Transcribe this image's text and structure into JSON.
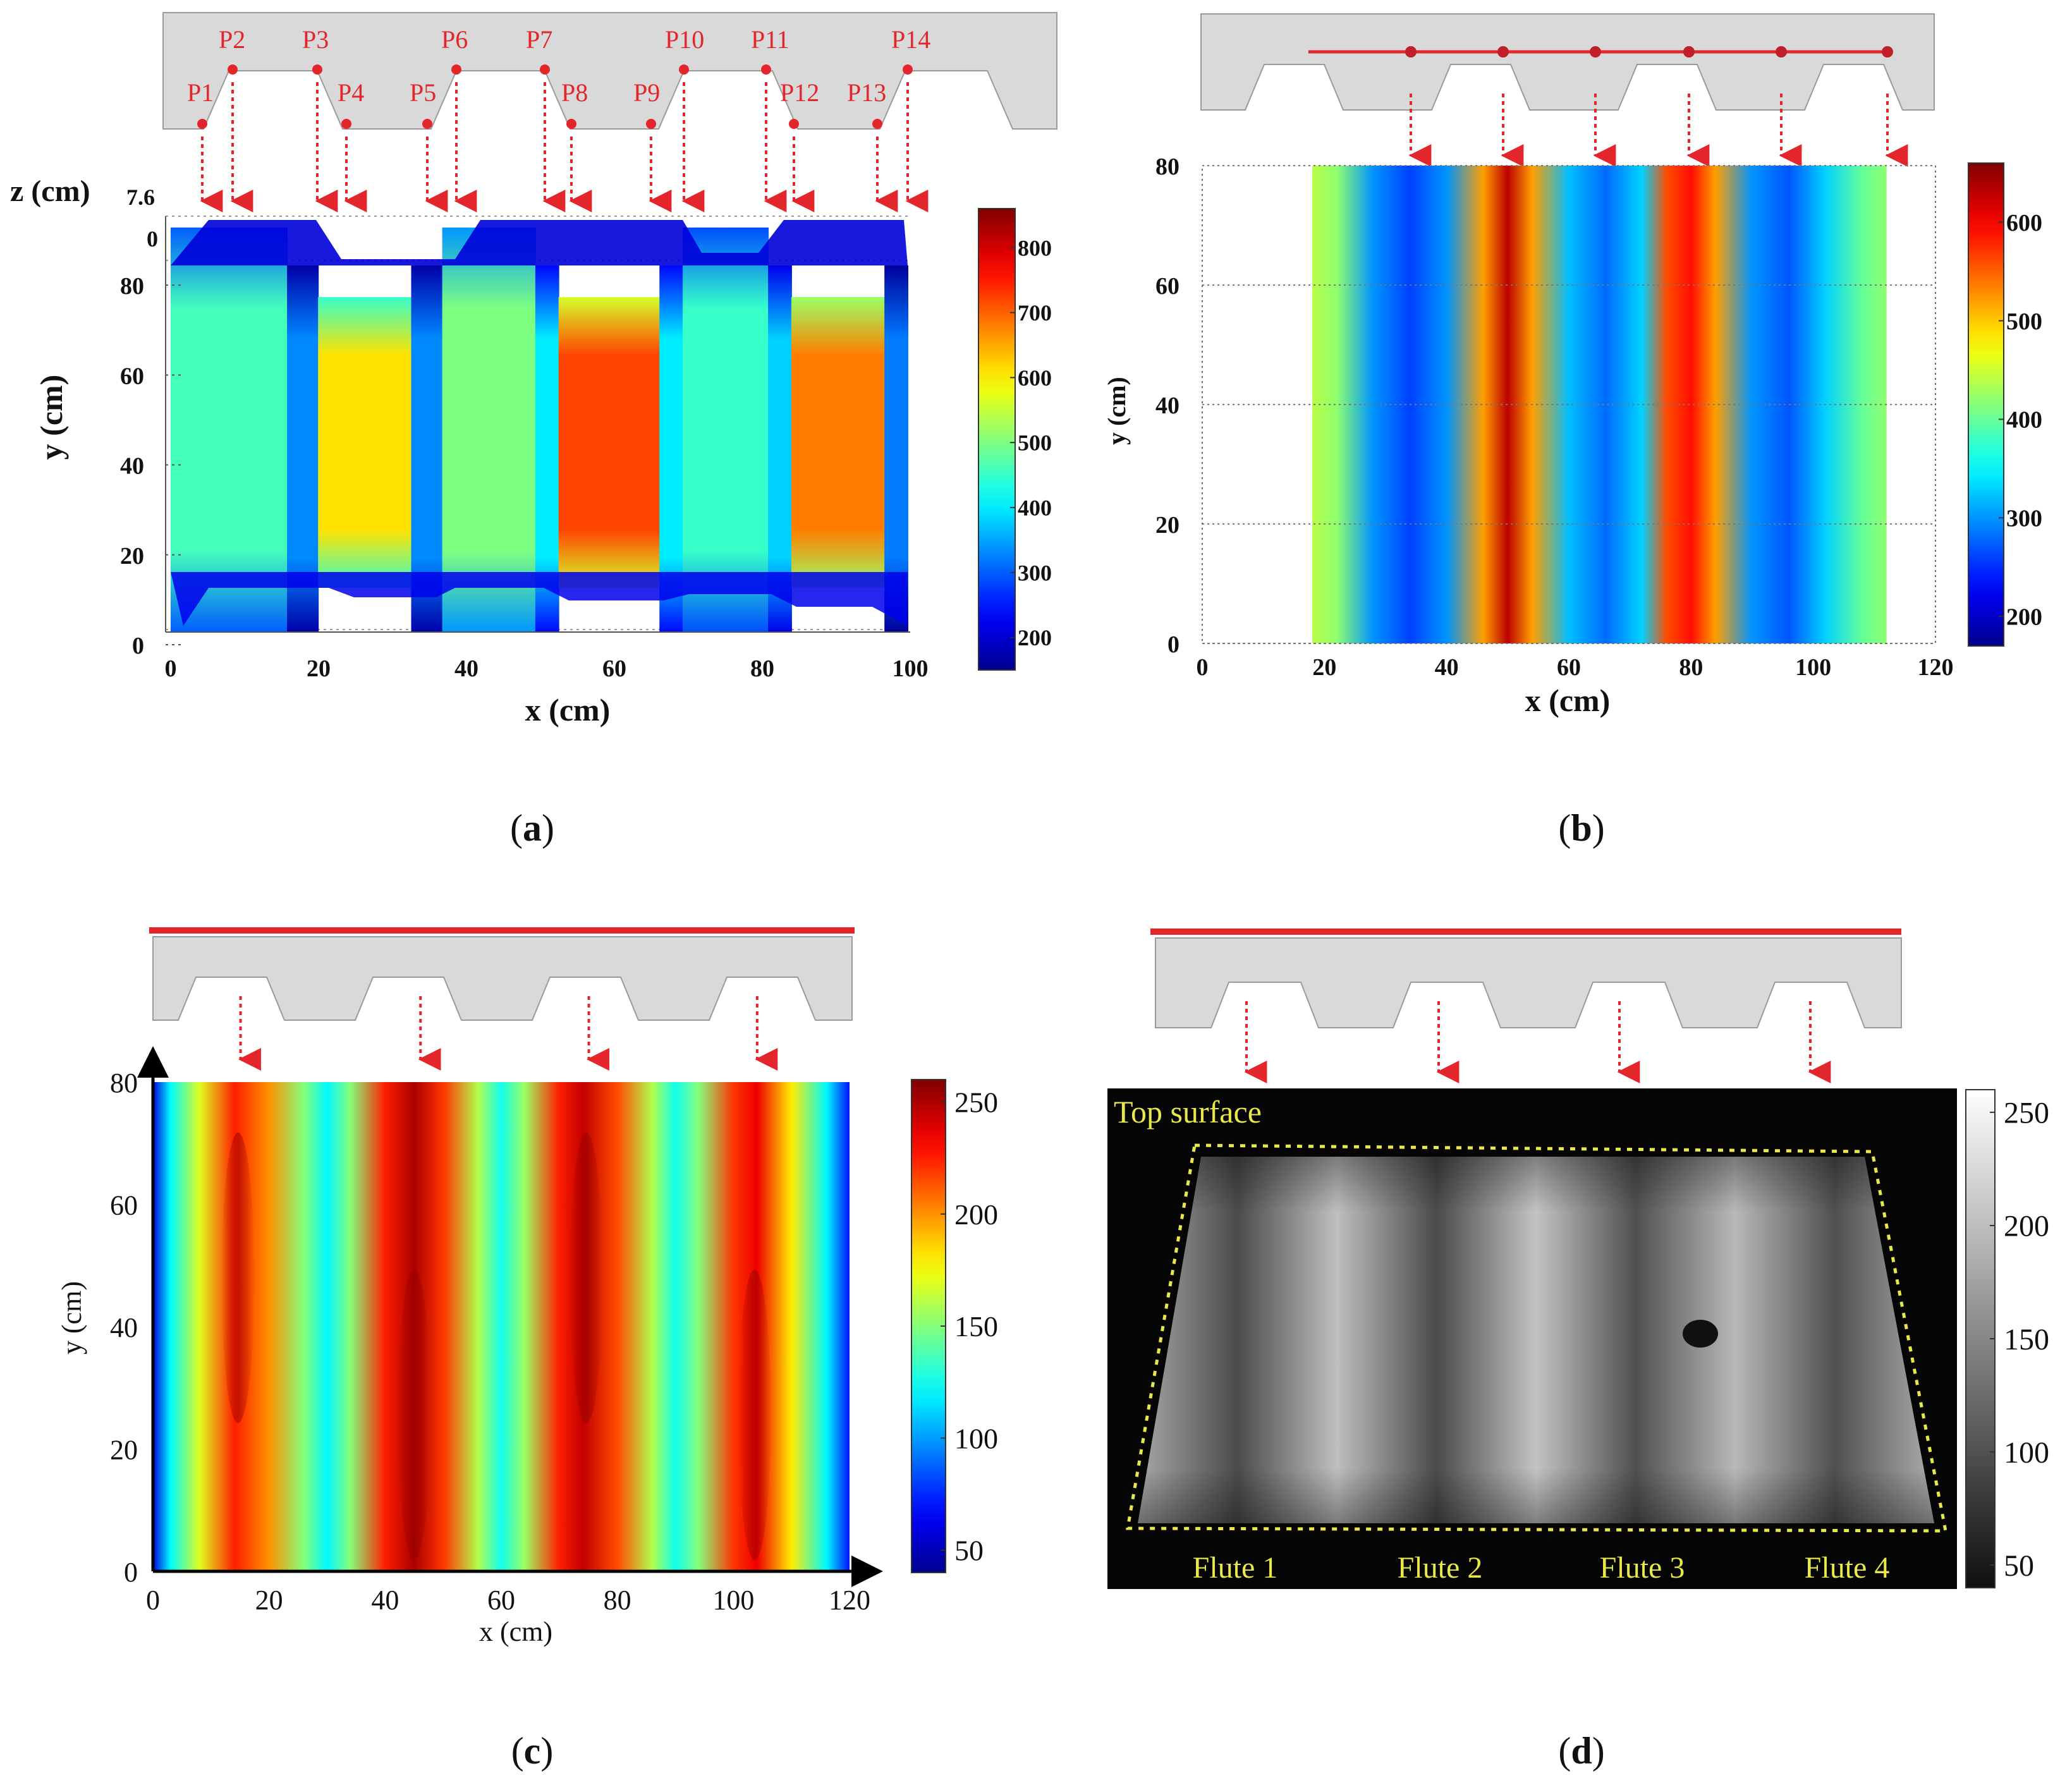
{
  "colors": {
    "jet": [
      "#00008f",
      "#0000ff",
      "#00ffff",
      "#ffff00",
      "#ff0000",
      "#800000"
    ],
    "beam_red": "#e3262b",
    "profile_gray": "#d9d9d9",
    "annotation_yellow": "#e8e84a"
  },
  "chart_data": [
    {
      "panel": "(a)",
      "type": "heatmap",
      "title": "",
      "xlabel": "x (cm)",
      "ylabel": "y (cm)",
      "zlabel": "z (cm)",
      "z_ticks": [
        "7.6",
        "0"
      ],
      "xlim": [
        0,
        100
      ],
      "ylim": [
        0,
        90
      ],
      "x_ticks": [
        0,
        20,
        40,
        60,
        80,
        100
      ],
      "y_ticks": [
        0,
        20,
        40,
        60,
        80
      ],
      "colorbar": {
        "min": 150,
        "max": 860,
        "ticks": [
          200,
          300,
          400,
          500,
          600,
          700,
          800
        ]
      },
      "points": [
        "P1",
        "P2",
        "P3",
        "P4",
        "P5",
        "P6",
        "P7",
        "P8",
        "P9",
        "P10",
        "P11",
        "P12",
        "P13",
        "P14"
      ],
      "segments": [
        {
          "x0": 5,
          "x1": 20,
          "face": "flute",
          "value": 460
        },
        {
          "x0": 20,
          "x1": 24,
          "face": "web",
          "value": 330
        },
        {
          "x0": 24,
          "x1": 36,
          "face": "valley",
          "value": 610
        },
        {
          "x0": 36,
          "x1": 40,
          "face": "web",
          "value": 330
        },
        {
          "x0": 40,
          "x1": 52,
          "face": "flute",
          "value": 500
        },
        {
          "x0": 52,
          "x1": 55,
          "face": "web",
          "value": 400
        },
        {
          "x0": 55,
          "x1": 68,
          "face": "valley",
          "value": 720
        },
        {
          "x0": 68,
          "x1": 71,
          "face": "web",
          "value": 400
        },
        {
          "x0": 71,
          "x1": 82,
          "face": "flute",
          "value": 450
        },
        {
          "x0": 82,
          "x1": 85,
          "face": "web",
          "value": 380
        },
        {
          "x0": 85,
          "x1": 97,
          "face": "valley",
          "value": 680
        },
        {
          "x0": 97,
          "x1": 100,
          "face": "web",
          "value": 320
        }
      ]
    },
    {
      "panel": "(b)",
      "type": "heatmap",
      "title": "",
      "xlabel": "x (cm)",
      "ylabel": "y (cm)",
      "xlim": [
        0,
        120
      ],
      "ylim": [
        0,
        80
      ],
      "x_ticks": [
        0,
        20,
        40,
        60,
        80,
        100,
        120
      ],
      "y_ticks": [
        0,
        20,
        40,
        60,
        80
      ],
      "colorbar": {
        "min": 170,
        "max": 660,
        "ticks": [
          200,
          300,
          400,
          500,
          600
        ]
      },
      "profile_x": [
        20,
        37,
        51,
        66,
        80,
        96,
        112
      ],
      "x": [
        18,
        22,
        28,
        34,
        40,
        46,
        50,
        54,
        60,
        66,
        72,
        76,
        80,
        84,
        90,
        96,
        102,
        108,
        112
      ],
      "values": [
        440,
        420,
        300,
        260,
        300,
        520,
        630,
        520,
        320,
        280,
        330,
        560,
        590,
        520,
        300,
        270,
        330,
        400,
        420
      ]
    },
    {
      "panel": "(c)",
      "type": "heatmap",
      "title": "",
      "xlabel": "x (cm)",
      "ylabel": "y (cm)",
      "xlim": [
        0,
        120
      ],
      "ylim": [
        0,
        80
      ],
      "x_ticks": [
        0,
        20,
        40,
        60,
        80,
        100,
        120
      ],
      "y_ticks": [
        0,
        20,
        40,
        60,
        80
      ],
      "colorbar": {
        "min": 40,
        "max": 260,
        "ticks": [
          50,
          100,
          150,
          200,
          250
        ]
      },
      "peaks_x": [
        14,
        45,
        74,
        103
      ],
      "x": [
        0,
        3,
        8,
        14,
        20,
        26,
        30,
        34,
        40,
        45,
        50,
        56,
        60,
        64,
        70,
        74,
        80,
        86,
        90,
        94,
        100,
        104,
        110,
        116,
        120
      ],
      "values": [
        60,
        120,
        170,
        225,
        200,
        150,
        120,
        150,
        225,
        250,
        220,
        160,
        125,
        155,
        225,
        245,
        215,
        160,
        125,
        150,
        220,
        235,
        180,
        120,
        70
      ]
    },
    {
      "panel": "(d)",
      "type": "heatmap",
      "title": "",
      "colormap": "gray",
      "annotation": "Top surface",
      "flute_labels": [
        "Flute 1",
        "Flute 2",
        "Flute 3",
        "Flute 4"
      ],
      "colorbar": {
        "min": 40,
        "max": 260,
        "ticks": [
          50,
          100,
          150,
          200,
          250
        ]
      },
      "band_values": [
        180,
        95,
        200,
        95,
        205,
        100,
        195,
        100,
        185
      ]
    }
  ]
}
